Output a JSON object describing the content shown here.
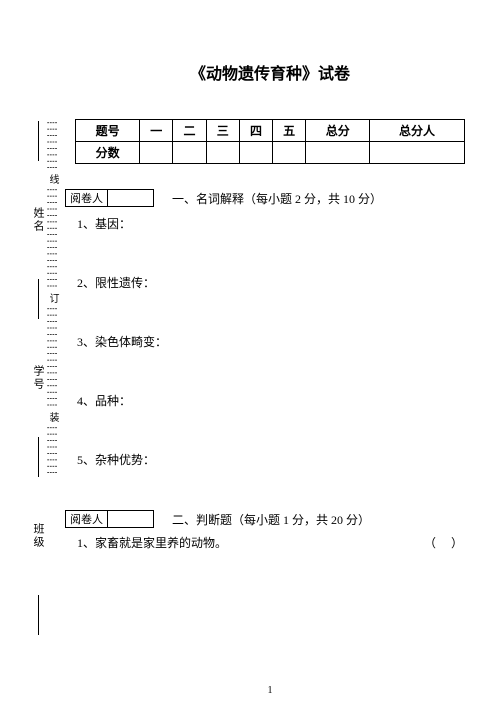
{
  "title": "《动物遗传育种》试卷",
  "table": {
    "headers": [
      "题号",
      "一",
      "二",
      "三",
      "四",
      "五",
      "总分",
      "总分人"
    ],
    "row_label": "分数"
  },
  "side": {
    "labels": [
      "班级",
      "学号",
      "姓名"
    ],
    "dash_labels": [
      "装",
      "订",
      "线"
    ]
  },
  "section1": {
    "grader": "阅卷人",
    "heading": "一、名词解释（每小题 2 分，共 10 分）",
    "items": [
      "1、基因：",
      "2、限性遗传：",
      "3、染色体畸变：",
      "4、品种：",
      "5、杂种优势："
    ]
  },
  "section2": {
    "grader": "阅卷人",
    "heading": "二、判断题（每小题 1 分，共 20 分）",
    "item": "1、家畜就是家里养的动物。",
    "paren": "（   ）"
  },
  "page_num": "1"
}
